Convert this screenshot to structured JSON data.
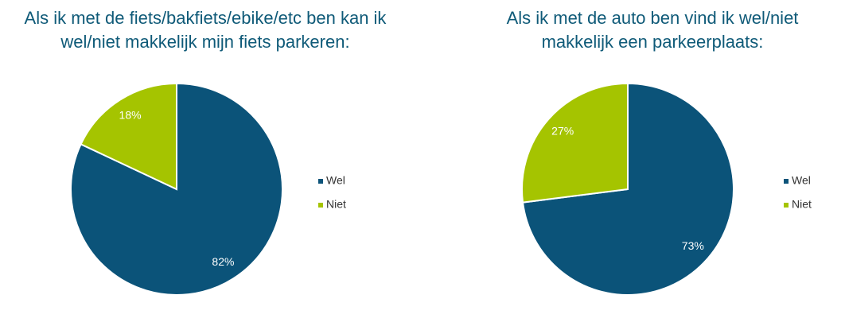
{
  "chart_data": [
    {
      "type": "pie",
      "title": "Als ik met de fiets/bakfiets/ebike/etc ben kan ik\nwel/niet makkelijk mijn fiets parkeren:",
      "categories": [
        "Wel",
        "Niet"
      ],
      "values": [
        82,
        18
      ],
      "value_labels": [
        "82%",
        "18%"
      ],
      "colors": [
        "#0b5379",
        "#a5c400"
      ],
      "legend": "right"
    },
    {
      "type": "pie",
      "title": "Als ik met de auto ben vind ik wel/niet\nmakkelijk een parkeerplaats:",
      "categories": [
        "Wel",
        "Niet"
      ],
      "values": [
        73,
        27
      ],
      "value_labels": [
        "73%",
        "27%"
      ],
      "colors": [
        "#0b5379",
        "#a5c400"
      ],
      "legend": "right"
    }
  ]
}
